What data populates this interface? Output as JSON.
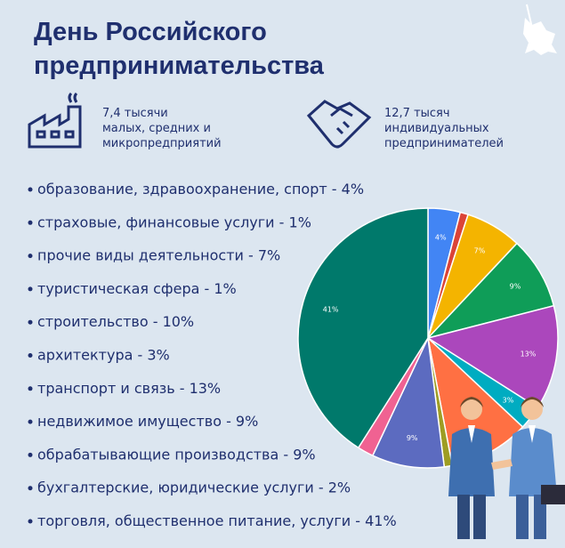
{
  "header": {
    "title_line1": "День Российского",
    "title_line2": "предпринимательства"
  },
  "stats": [
    {
      "lines": [
        "7,4 тысячи",
        "малых, средних и",
        "микропредприятий"
      ]
    },
    {
      "lines": [
        "12,7 тысяч",
        "индивидуальных",
        "предпринимателей"
      ]
    }
  ],
  "list": [
    "образование, здравоохранение, спорт - 4%",
    "страховые, финансовые услуги - 1%",
    "прочие виды деятельности - 7%",
    "туристическая сфера - 1%",
    "строительство - 10%",
    "архитектура - 3%",
    "транспорт и связь - 13%",
    "недвижимое имущество - 9%",
    "обрабатывающие производства - 9%",
    "бухгалтерские, юридические услуги - 2%",
    "торговля, общественное питание, услуги - 41%"
  ],
  "chart_data": {
    "type": "pie",
    "values": [
      4,
      1,
      7,
      9,
      13,
      3,
      10,
      1,
      9,
      2,
      41
    ],
    "value_labels": [
      "4%",
      null,
      "7%",
      "9%",
      "13%",
      "3%",
      null,
      null,
      "9%",
      null,
      "41%"
    ],
    "colors": [
      "#4285f4",
      "#db4437",
      "#f4b400",
      "#0f9d58",
      "#ab47bc",
      "#00acc1",
      "#ff7043",
      "#9e9d24",
      "#5c6bc0",
      "#f06292",
      "#00796b"
    ]
  }
}
